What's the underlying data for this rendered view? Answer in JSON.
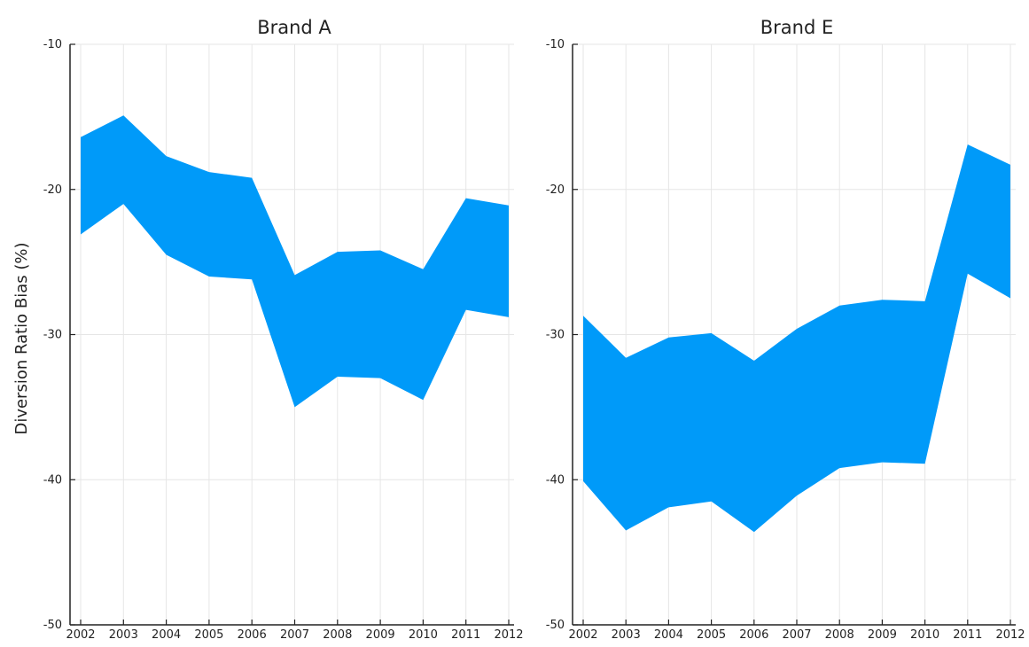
{
  "chart_data": {
    "type": "area",
    "ylabel": "Diversion Ratio Bias (%)",
    "ylim": [
      -50,
      -10
    ],
    "yticks": [
      -50,
      -40,
      -30,
      -20,
      -10
    ],
    "x": [
      2002,
      2003,
      2004,
      2005,
      2006,
      2007,
      2008,
      2009,
      2010,
      2011,
      2012
    ],
    "grid": true,
    "fill_color": "#009af9",
    "panels": [
      {
        "title": "Brand A",
        "upper": [
          -16.4,
          -14.9,
          -17.7,
          -18.8,
          -19.2,
          -25.9,
          -24.3,
          -24.2,
          -25.5,
          -20.6,
          -21.1
        ],
        "lower": [
          -23.1,
          -21.0,
          -24.5,
          -26.0,
          -26.2,
          -35.0,
          -32.9,
          -33.0,
          -34.5,
          -28.3,
          -28.8
        ]
      },
      {
        "title": "Brand E",
        "upper": [
          -28.7,
          -31.6,
          -30.2,
          -29.9,
          -31.8,
          -29.6,
          -28.0,
          -27.6,
          -27.7,
          -16.9,
          -18.3
        ],
        "lower": [
          -40.1,
          -43.5,
          -41.9,
          -41.5,
          -43.6,
          -41.1,
          -39.2,
          -38.8,
          -38.9,
          -25.8,
          -27.5
        ]
      }
    ]
  }
}
